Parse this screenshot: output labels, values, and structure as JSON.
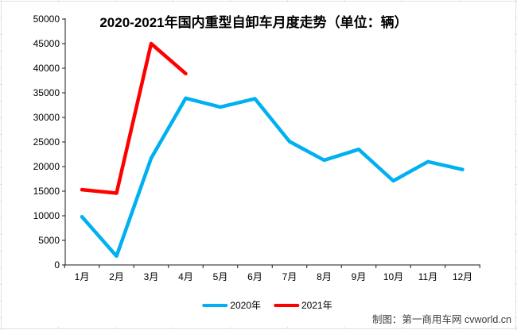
{
  "chart_data": {
    "type": "line",
    "title": "2020-2021年国内重型自卸车月度走势（单位：辆）",
    "categories": [
      "1月",
      "2月",
      "3月",
      "4月",
      "5月",
      "6月",
      "7月",
      "8月",
      "9月",
      "10月",
      "11月",
      "12月"
    ],
    "series": [
      {
        "name": "2020年",
        "color": "#00B0F0",
        "values": [
          9800,
          1800,
          21700,
          33900,
          32100,
          33800,
          25100,
          21300,
          23500,
          17100,
          21000,
          19400
        ]
      },
      {
        "name": "2021年",
        "color": "#FF0000",
        "values": [
          15300,
          14600,
          45000,
          38900
        ]
      }
    ],
    "xlabel": "",
    "ylabel": "",
    "ylim": [
      0,
      50000
    ],
    "ytick_step": 5000,
    "grid": false,
    "legend_position": "bottom"
  },
  "footer": {
    "credit": "制图：第一商用车网 cvworld.cn"
  }
}
